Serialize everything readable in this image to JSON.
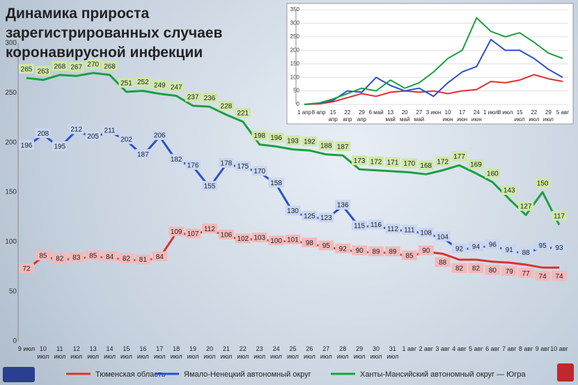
{
  "chart_data": [
    {
      "type": "line",
      "title": "Динамика прироста зарегистрированных случаев коронавирусной инфекции",
      "categories": [
        "9 июл",
        "10 июл",
        "11 июл",
        "12 июл",
        "13 июл",
        "14 июл",
        "15 июл",
        "16 июл",
        "17 июл",
        "18 июл",
        "19 июл",
        "20 июл",
        "21 июл",
        "22 июл",
        "23 июл",
        "24 июл",
        "25 июл",
        "26 июл",
        "27 июл",
        "28 июл",
        "29 июл",
        "30 июл",
        "31 июл",
        "1 авг",
        "2 авг",
        "3 авг",
        "4 авг",
        "5 авг",
        "6 авг",
        "7 авг",
        "8 авг",
        "9 авг",
        "10 авг"
      ],
      "series": [
        {
          "name": "Тюменская область",
          "color": "#e03030",
          "label_color": "#f2b9b9",
          "values": [
            72,
            85,
            82,
            83,
            85,
            84,
            82,
            81,
            84,
            109,
            107,
            112,
            106,
            102,
            103,
            100,
            101,
            98,
            95,
            92,
            90,
            89,
            89,
            85,
            90,
            88,
            82,
            82,
            80,
            79,
            77,
            74,
            74
          ]
        },
        {
          "name": "Ямало-Ненецкий автономный округ",
          "color": "#2a4fd0",
          "label_color": "#c8d6f2",
          "values": [
            196,
            208,
            195,
            212,
            205,
            211,
            202,
            187,
            206,
            182,
            176,
            155,
            178,
            175,
            170,
            158,
            130,
            125,
            123,
            136,
            115,
            116,
            112,
            111,
            108,
            104,
            92,
            94,
            96,
            91,
            88,
            95,
            93
          ]
        },
        {
          "name": "Ханты-Мансийский автономный округ — Югра",
          "color": "#1aa040",
          "label_color": "#cfe8a8",
          "values": [
            265,
            263,
            268,
            267,
            270,
            268,
            251,
            252,
            249,
            247,
            237,
            236,
            228,
            221,
            198,
            196,
            193,
            192,
            188,
            187,
            173,
            172,
            171,
            170,
            168,
            172,
            177,
            169,
            160,
            143,
            127,
            150,
            117
          ]
        }
      ],
      "ylim": [
        0,
        300
      ],
      "yticks": [
        0,
        50,
        100,
        150,
        200,
        250,
        300
      ],
      "grid": false,
      "legend": "bottom"
    },
    {
      "type": "line",
      "categories": [
        "1 апр",
        "8 апр",
        "15 апр",
        "22 апр",
        "29 апр",
        "6 май",
        "13 май",
        "20 май",
        "27 май",
        "3 июн",
        "10 июн",
        "17 июн",
        "24 июн",
        "1 июл",
        "8 июл",
        "15 июл",
        "22 июл",
        "29 июл",
        "5 авг"
      ],
      "series": [
        {
          "color": "#e03030",
          "values": [
            0,
            2,
            10,
            25,
            40,
            30,
            45,
            50,
            45,
            50,
            40,
            50,
            55,
            85,
            80,
            90,
            110,
            95,
            85
          ]
        },
        {
          "color": "#2a4fd0",
          "values": [
            0,
            5,
            15,
            50,
            45,
            100,
            70,
            50,
            60,
            30,
            80,
            120,
            140,
            240,
            200,
            200,
            170,
            130,
            100
          ]
        },
        {
          "color": "#1aa040",
          "values": [
            0,
            5,
            20,
            40,
            60,
            50,
            90,
            60,
            80,
            120,
            170,
            200,
            320,
            270,
            250,
            265,
            230,
            190,
            170
          ]
        }
      ],
      "ylim": [
        0,
        350
      ],
      "yticks": [
        0,
        50,
        100,
        150,
        200,
        250,
        300,
        350
      ],
      "grid": true
    }
  ]
}
